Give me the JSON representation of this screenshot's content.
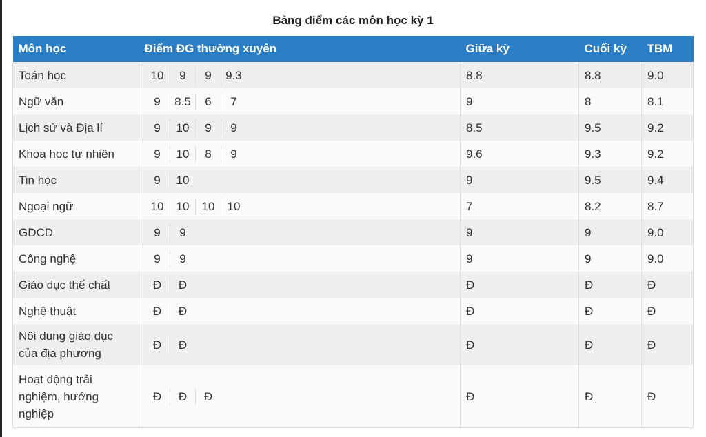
{
  "title": "Bảng điểm các môn học kỳ 1",
  "headers": [
    "Môn học",
    "Điểm ĐG thường xuyên",
    "Giữa kỳ",
    "Cuối kỳ",
    "TBM"
  ],
  "header_color": "#2a7ec5",
  "rows": [
    {
      "subject": "Toán học",
      "regular": [
        "10",
        "9",
        "9",
        "9.3"
      ],
      "mid": "8.8",
      "final": "8.8",
      "avg": "9.0"
    },
    {
      "subject": "Ngữ văn",
      "regular": [
        "9",
        "8.5",
        "6",
        "7"
      ],
      "mid": "9",
      "final": "8",
      "avg": "8.1"
    },
    {
      "subject": "Lịch sử và Địa lí",
      "regular": [
        "9",
        "10",
        "9",
        "9"
      ],
      "mid": "8.5",
      "final": "9.5",
      "avg": "9.2"
    },
    {
      "subject": "Khoa học tự nhiên",
      "regular": [
        "9",
        "10",
        "8",
        "9"
      ],
      "mid": "9.6",
      "final": "9.3",
      "avg": "9.2"
    },
    {
      "subject": "Tin học",
      "regular": [
        "9",
        "10"
      ],
      "mid": "9",
      "final": "9.5",
      "avg": "9.4"
    },
    {
      "subject": "Ngoại ngữ",
      "regular": [
        "10",
        "10",
        "10",
        "10"
      ],
      "mid": "7",
      "final": "8.2",
      "avg": "8.7"
    },
    {
      "subject": "GDCD",
      "regular": [
        "9",
        "9"
      ],
      "mid": "9",
      "final": "9",
      "avg": "9.0"
    },
    {
      "subject": "Công nghệ",
      "regular": [
        "9",
        "9"
      ],
      "mid": "9",
      "final": "9",
      "avg": "9.0"
    },
    {
      "subject": "Giáo dục thể chất",
      "regular": [
        "Đ",
        "Đ"
      ],
      "mid": "Đ",
      "final": "Đ",
      "avg": "Đ"
    },
    {
      "subject": "Nghệ thuật",
      "regular": [
        "Đ",
        "Đ"
      ],
      "mid": "Đ",
      "final": "Đ",
      "avg": "Đ"
    },
    {
      "subject": "Nội dung giáo dục của địa phương",
      "regular": [
        "Đ",
        "Đ"
      ],
      "mid": "Đ",
      "final": "Đ",
      "avg": "Đ"
    },
    {
      "subject": "Hoạt động trải nghiệm, hướng nghiệp",
      "regular": [
        "Đ",
        "Đ",
        "Đ"
      ],
      "mid": "Đ",
      "final": "Đ",
      "avg": "Đ"
    }
  ]
}
